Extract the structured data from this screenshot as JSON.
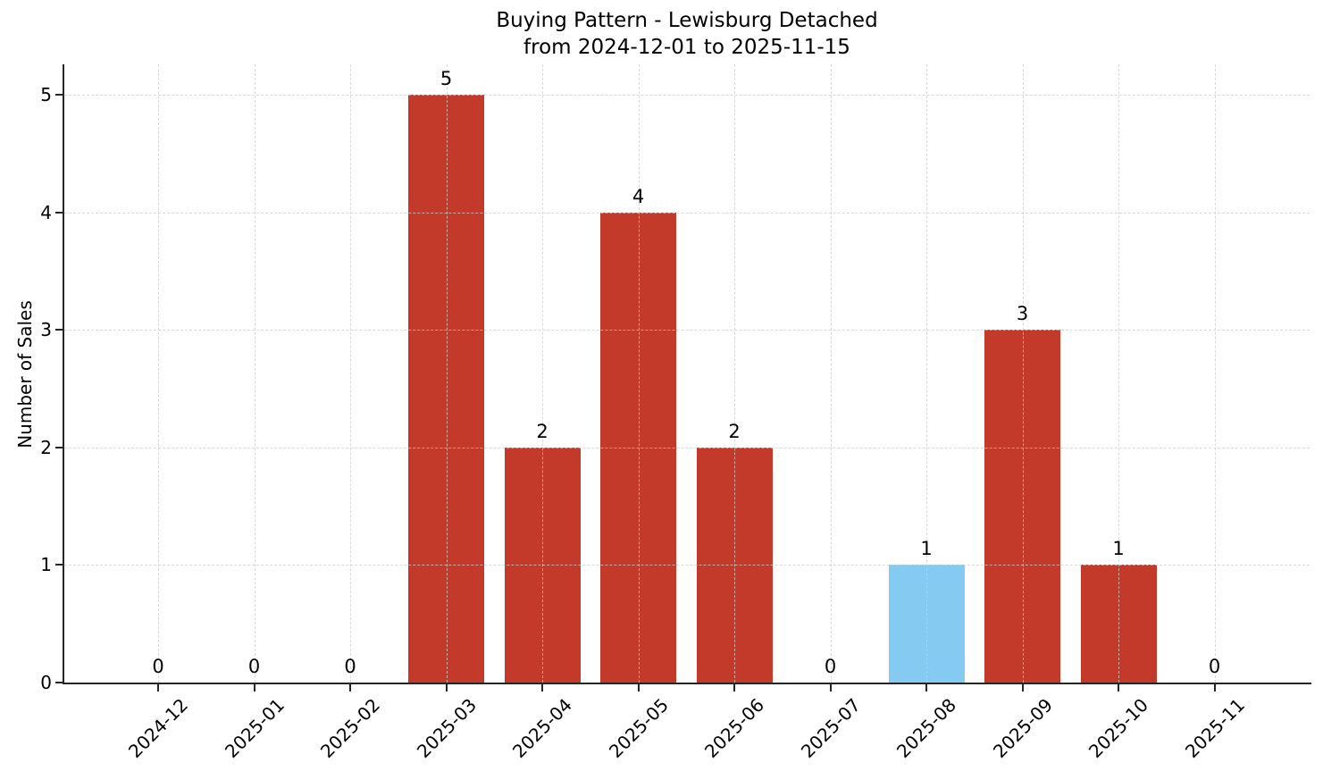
{
  "figure": {
    "title_line1": "Buying Pattern - Lewisburg Detached",
    "title_line2": "from 2024-12-01 to 2025-11-15",
    "ylabel": "Number of Sales"
  },
  "chart_data": {
    "type": "bar",
    "title": "Buying Pattern - Lewisburg Detached\nfrom 2024-12-01 to 2025-11-15",
    "xlabel": "",
    "ylabel": "Number of Sales",
    "categories": [
      "2024-12",
      "2025-01",
      "2025-02",
      "2025-03",
      "2025-04",
      "2025-05",
      "2025-06",
      "2025-07",
      "2025-08",
      "2025-09",
      "2025-10",
      "2025-11"
    ],
    "values": [
      0,
      0,
      0,
      5,
      2,
      4,
      2,
      0,
      1,
      3,
      1,
      0
    ],
    "bar_labels_shown": true,
    "ylim": [
      0,
      5.26
    ],
    "yticks": [
      0,
      1,
      2,
      3,
      4,
      5
    ],
    "grid": true,
    "grid_style": "dashed",
    "legend": null,
    "x_tick_rotation_deg": 45,
    "highlight_index": 8,
    "highlight_category": "2025-08",
    "colors": {
      "bar_default": "#c33a2b",
      "bar_highlight": "#85caf0",
      "axis": "#262626",
      "grid": "#cdcdcd",
      "text": "#000000",
      "background": "#ffffff"
    }
  }
}
